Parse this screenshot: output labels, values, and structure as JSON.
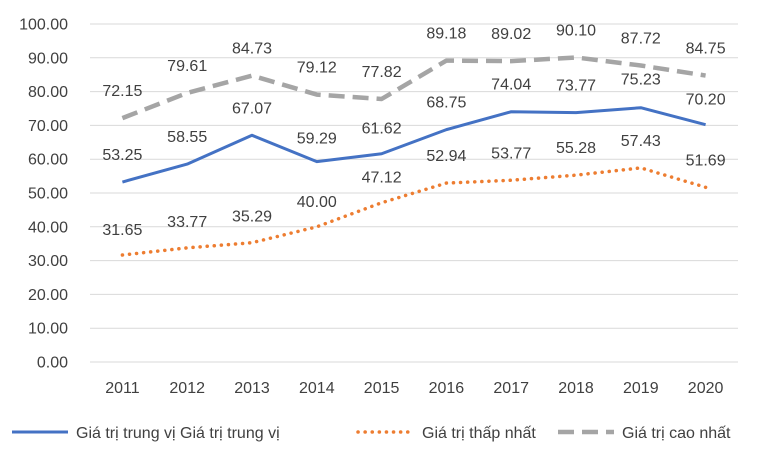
{
  "chart_data": {
    "type": "line",
    "title": "",
    "xlabel": "",
    "ylabel": "",
    "categories": [
      "2011",
      "2012",
      "2013",
      "2014",
      "2015",
      "2016",
      "2017",
      "2018",
      "2019",
      "2020"
    ],
    "ylim": [
      0,
      100
    ],
    "yticks": [
      "0.00",
      "10.00",
      "20.00",
      "30.00",
      "40.00",
      "50.00",
      "60.00",
      "70.00",
      "80.00",
      "90.00",
      "100.00"
    ],
    "grid": true,
    "legend_position": "bottom",
    "series": [
      {
        "name": "Giá trị trung vị Giá trị trung vị",
        "values": [
          53.25,
          58.55,
          67.07,
          59.29,
          61.62,
          68.75,
          74.04,
          73.77,
          75.23,
          70.2
        ],
        "labels": [
          "53.25",
          "58.55",
          "67.07",
          "59.29",
          "61.62",
          "68.75",
          "74.04",
          "73.77",
          "75.23",
          "70.20"
        ],
        "color": "#4472c4",
        "style": "solid"
      },
      {
        "name": "Giá trị thấp nhất",
        "values": [
          31.65,
          33.77,
          35.29,
          40.0,
          47.12,
          52.94,
          53.77,
          55.28,
          57.43,
          51.69
        ],
        "labels": [
          "31.65",
          "33.77",
          "35.29",
          "40.00",
          "47.12",
          "52.94",
          "53.77",
          "55.28",
          "57.43",
          "51.69"
        ],
        "color": "#ed7d31",
        "style": "dotted"
      },
      {
        "name": "Giá trị cao nhất",
        "values": [
          72.15,
          79.61,
          84.73,
          79.12,
          77.82,
          89.18,
          89.02,
          90.1,
          87.72,
          84.75
        ],
        "labels": [
          "72.15",
          "79.61",
          "84.73",
          "79.12",
          "77.82",
          "89.18",
          "89.02",
          "90.10",
          "87.72",
          "84.75"
        ],
        "color": "#a5a5a5",
        "style": "dashed"
      }
    ]
  }
}
